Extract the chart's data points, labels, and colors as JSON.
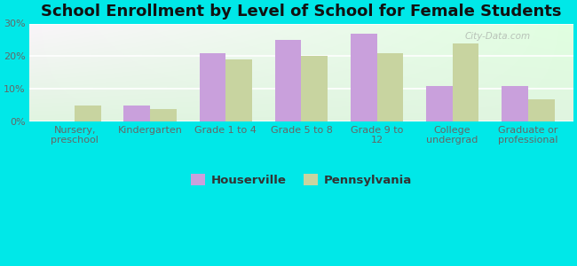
{
  "title": "School Enrollment by Level of School for Female Students",
  "categories": [
    "Nursery,\npreschool",
    "Kindergarten",
    "Grade 1 to 4",
    "Grade 5 to 8",
    "Grade 9 to\n12",
    "College\nundergrad",
    "Graduate or\nprofessional"
  ],
  "houserville": [
    0,
    5,
    21,
    25,
    27,
    11,
    11
  ],
  "pennsylvania": [
    5,
    4,
    19,
    20,
    21,
    24,
    7
  ],
  "bar_color_houserville": "#c9a0dc",
  "bar_color_pennsylvania": "#c8d4a0",
  "background_color": "#00e8e8",
  "ylim": [
    0,
    30
  ],
  "yticks": [
    0,
    10,
    20,
    30
  ],
  "ytick_labels": [
    "0%",
    "10%",
    "20%",
    "30%"
  ],
  "legend_labels": [
    "Houserville",
    "Pennsylvania"
  ],
  "bar_width": 0.35,
  "title_fontsize": 13,
  "tick_fontsize": 8,
  "legend_fontsize": 9.5,
  "watermark": "City-Data.com"
}
